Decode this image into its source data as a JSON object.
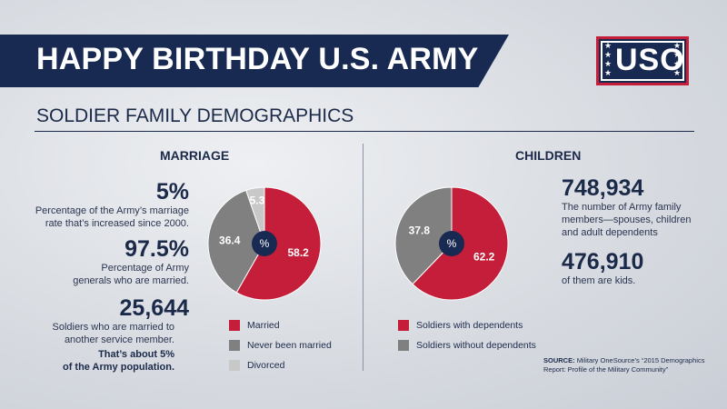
{
  "header": {
    "title": "HAPPY BIRTHDAY U.S. ARMY",
    "logo_text": "USO",
    "section_title": "SOLDIER FAMILY DEMOGRAPHICS"
  },
  "marriage": {
    "heading": "MARRIAGE",
    "stats": [
      {
        "value": "5%",
        "text": [
          "Percentage of the Army’s marriage",
          "rate that’s increased since 2000."
        ]
      },
      {
        "value": "97.5%",
        "text": [
          "Percentage of Army",
          "generals who are married."
        ]
      },
      {
        "value": "25,644",
        "text": [
          "Soldiers who are married to",
          "another service member."
        ],
        "emphasis": [
          "That’s about 5%",
          "of the Army population."
        ]
      }
    ]
  },
  "children": {
    "heading": "CHILDREN",
    "stats": [
      {
        "value": "748,934",
        "text": [
          "The number of Army family",
          "members—spouses, children",
          "and adult dependents"
        ]
      },
      {
        "value": "476,910",
        "text": [
          "of them are kids."
        ]
      }
    ]
  },
  "source": {
    "label": "SOURCE:",
    "text": "Military OneSource’s “2015 Demographics Report: Profile of the Military Community”"
  },
  "colors": {
    "navy": "#182a52",
    "red": "#c41e3a",
    "gray": "#808080",
    "light_gray": "#c8c8c8"
  },
  "chart_data": [
    {
      "type": "pie",
      "title": "MARRIAGE",
      "center_label": "%",
      "slices": [
        {
          "label": "Married",
          "value": 58.2,
          "color": "#c41e3a"
        },
        {
          "label": "Never been married",
          "value": 36.4,
          "color": "#808080"
        },
        {
          "label": "Divorced",
          "value": 5.3,
          "color": "#c8c8c8"
        }
      ]
    },
    {
      "type": "pie",
      "title": "CHILDREN",
      "center_label": "%",
      "slices": [
        {
          "label": "Soldiers with dependents",
          "value": 62.2,
          "color": "#c41e3a"
        },
        {
          "label": "Soldiers without dependents",
          "value": 37.8,
          "color": "#808080"
        }
      ]
    }
  ]
}
